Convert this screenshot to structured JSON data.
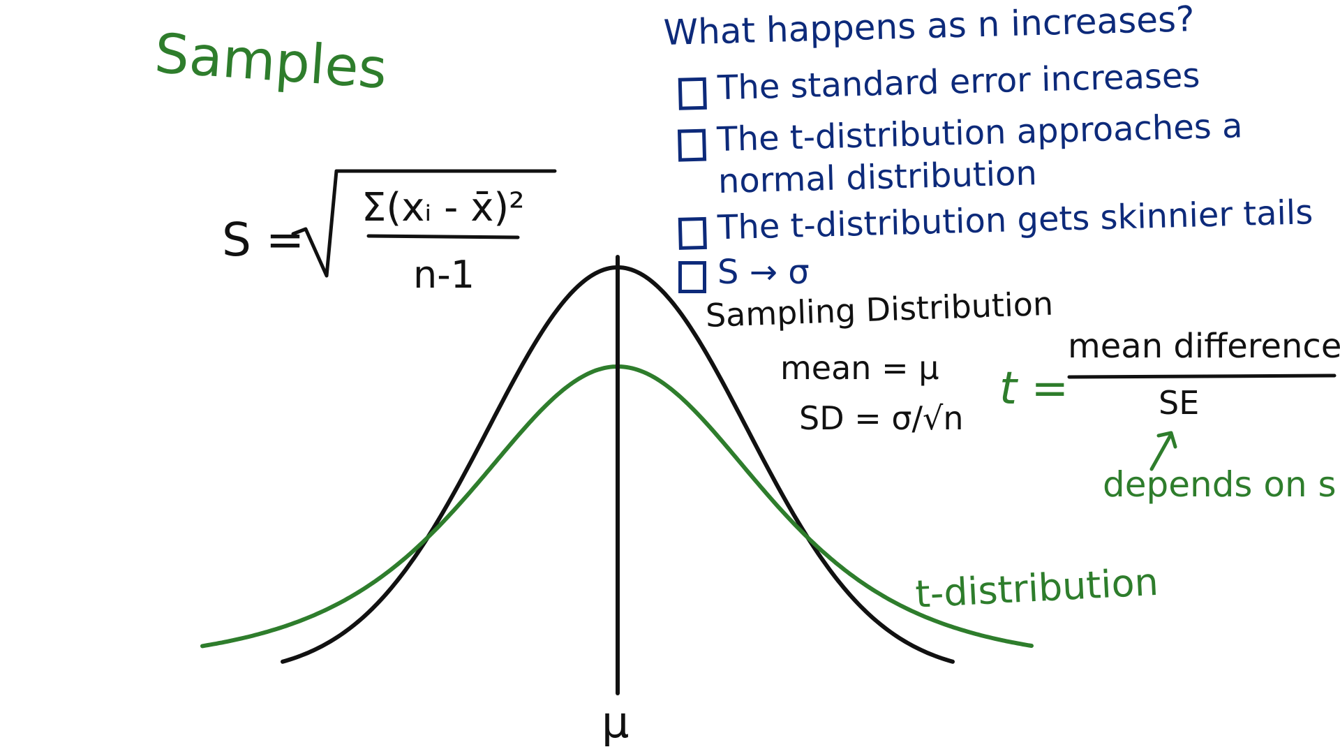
{
  "samples_heading": "Samples",
  "formula_s": {
    "lhs": "S =",
    "numerator": "Σ(xᵢ - x̄)²",
    "denominator": "n-1"
  },
  "question": {
    "title": "What happens as n increases?",
    "options": [
      "The standard error increases",
      "The t-distribution approaches a normal distribution",
      "The t-distribution gets skinnier tails",
      "S → σ"
    ]
  },
  "sampling_distribution": {
    "title": "Sampling Distribution",
    "mean_line": "mean = μ",
    "sd_line": "SD = σ/√n"
  },
  "t_formula": {
    "lhs": "t =",
    "numerator": "mean difference",
    "denominator": "SE",
    "annotation": "depends on s"
  },
  "curve_label_t": "t-distribution",
  "axis_center_label": "μ",
  "colors": {
    "green": "#2e7d2c",
    "blue": "#0d2a7a",
    "black": "#111111"
  }
}
